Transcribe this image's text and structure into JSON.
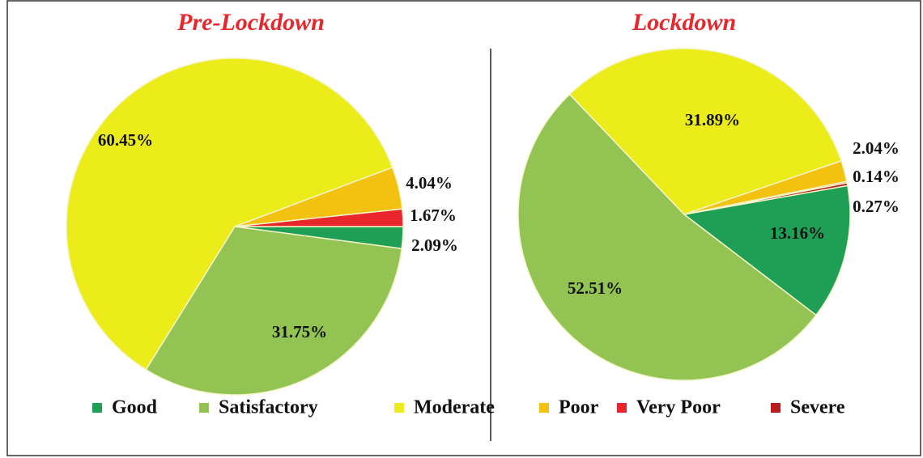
{
  "chart_data": [
    {
      "type": "pie",
      "title": "Pre-Lockdown",
      "categories": [
        "Good",
        "Satisfactory",
        "Moderate",
        "Poor",
        "Very Poor",
        "Severe"
      ],
      "values": [
        2.09,
        31.75,
        60.45,
        4.04,
        1.67,
        0
      ],
      "value_labels": [
        "2.09%",
        "31.75%",
        "60.45%",
        "4.04%",
        "1.67%",
        null
      ],
      "colors": [
        "#1f9e55",
        "#92c353",
        "#ecec1a",
        "#f3c10f",
        "#e8262b",
        "#b81c1c"
      ]
    },
    {
      "type": "pie",
      "title": "Lockdown",
      "categories": [
        "Good",
        "Satisfactory",
        "Moderate",
        "Poor",
        "Very Poor",
        "Severe"
      ],
      "values": [
        13.16,
        52.51,
        31.89,
        2.04,
        0.14,
        0.27
      ],
      "value_labels": [
        "13.16%",
        "52.51%",
        "31.89%",
        "2.04%",
        "0.14%",
        "0.27%"
      ],
      "colors": [
        "#1f9e55",
        "#92c353",
        "#ecec1a",
        "#f3c10f",
        "#e8262b",
        "#b81c1c"
      ]
    }
  ]
}
